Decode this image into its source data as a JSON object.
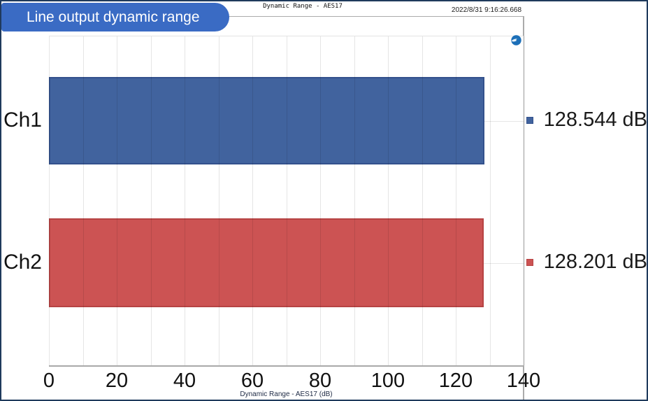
{
  "window": {
    "background": "#FFFFFF",
    "border_color": "#1F3A5C"
  },
  "header": {
    "title": "Dynamic Range - AES17",
    "timestamp": "2022/8/31 9:16:26.668"
  },
  "banner": {
    "label": "Line output dynamic range",
    "background": "#3A6BC4",
    "text_color": "#FFFFFF"
  },
  "icons": {
    "ap_logo": "audio-precision-logo",
    "ap_logo_color": "#1C6FB8"
  },
  "chart_data": {
    "type": "bar",
    "orientation": "horizontal",
    "title": "Dynamic Range - AES17",
    "xlabel": "Dynamic Range - AES17 (dB)",
    "categories": [
      "Ch1",
      "Ch2"
    ],
    "values": [
      128.544,
      128.201
    ],
    "value_labels": [
      "128.544 dB",
      "128.201 dB"
    ],
    "unit": "dB",
    "xlim": [
      0,
      140
    ],
    "x_ticks": [
      0,
      20,
      40,
      60,
      80,
      100,
      120,
      140
    ],
    "gridline_step": 10,
    "grid": true,
    "legend_position": "right-of-plot",
    "series_colors": [
      {
        "name": "Ch1",
        "fill": "#41639E",
        "border": "#33518C"
      },
      {
        "name": "Ch2",
        "fill": "#CC5353",
        "border": "#B64343"
      }
    ]
  }
}
